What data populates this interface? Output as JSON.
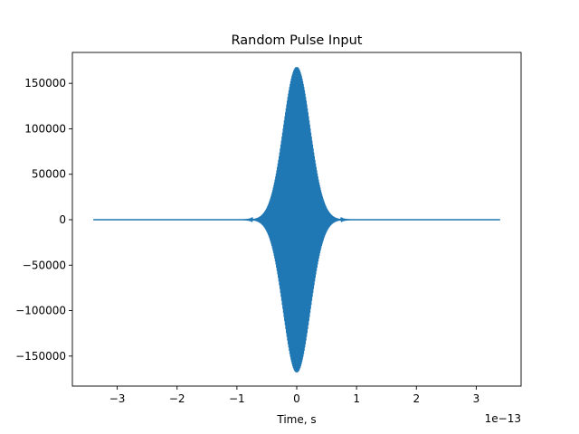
{
  "chart_data": {
    "type": "line",
    "title": "Random Pulse Input",
    "xlabel": "Time, s",
    "ylabel": "",
    "x_offset_label": "1e−13",
    "xlim": [
      -3.75,
      3.75
    ],
    "ylim": [
      -183000,
      184000
    ],
    "xticks": [
      -3,
      -2,
      -1,
      0,
      1,
      2,
      3
    ],
    "xtick_labels": [
      "−3",
      "−2",
      "−1",
      "0",
      "1",
      "2",
      "3"
    ],
    "yticks": [
      -150000,
      -100000,
      -50000,
      0,
      50000,
      100000,
      150000
    ],
    "ytick_labels": [
      "−150000",
      "−100000",
      "−50000",
      "0",
      "50000",
      "100000",
      "150000"
    ],
    "grid": false,
    "series": [
      {
        "style": "oscillating pulse with gaussian envelope",
        "x_range": [
          -3.4,
          3.4
        ],
        "center": 0.0,
        "peak_amplitude": 168000,
        "envelope_sigma": 0.22,
        "color": "#1f77b4"
      }
    ]
  }
}
